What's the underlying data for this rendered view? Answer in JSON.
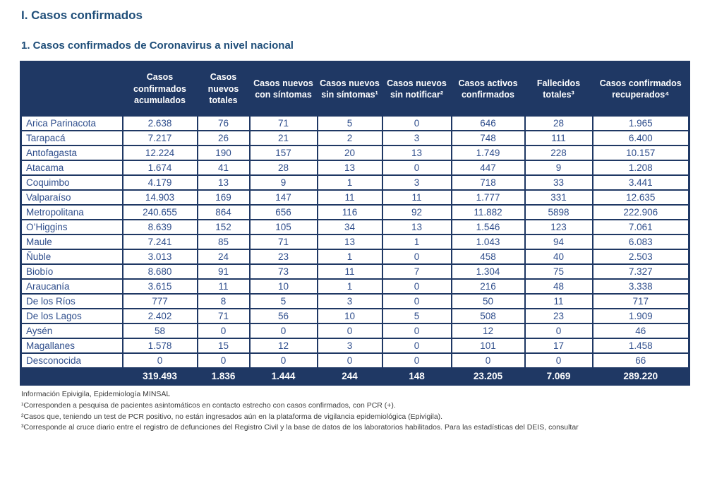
{
  "page": {
    "title": "I. Casos confirmados",
    "subtitle": "1. Casos confirmados de Coronavirus a nivel nacional"
  },
  "colors": {
    "header_background": "#1F3864",
    "table_border": "#1F3864",
    "data_text": "#2F4E8C",
    "title_text": "#1F4E79",
    "footnote_text": "#3D3D3D"
  },
  "table": {
    "columns": [
      "",
      "Casos confirmados acumulados",
      "Casos nuevos totales",
      "Casos nuevos con síntomas",
      "Casos nuevos sin síntomas¹",
      "Casos nuevos sin notificar²",
      "Casos activos confirmados",
      "Fallecidos totales³",
      "Casos confirmados recuperados⁴"
    ],
    "rows": [
      {
        "region": "Arica Parinacota",
        "values": [
          "2.638",
          "76",
          "71",
          "5",
          "0",
          "646",
          "28",
          "1.965"
        ]
      },
      {
        "region": "Tarapacá",
        "values": [
          "7.217",
          "26",
          "21",
          "2",
          "3",
          "748",
          "111",
          "6.400"
        ]
      },
      {
        "region": "Antofagasta",
        "values": [
          "12.224",
          "190",
          "157",
          "20",
          "13",
          "1.749",
          "228",
          "10.157"
        ]
      },
      {
        "region": "Atacama",
        "values": [
          "1.674",
          "41",
          "28",
          "13",
          "0",
          "447",
          "9",
          "1.208"
        ]
      },
      {
        "region": "Coquimbo",
        "values": [
          "4.179",
          "13",
          "9",
          "1",
          "3",
          "718",
          "33",
          "3.441"
        ]
      },
      {
        "region": "Valparaíso",
        "values": [
          "14.903",
          "169",
          "147",
          "11",
          "11",
          "1.777",
          "331",
          "12.635"
        ]
      },
      {
        "region": "Metropolitana",
        "values": [
          "240.655",
          "864",
          "656",
          "116",
          "92",
          "11.882",
          "5898",
          "222.906"
        ]
      },
      {
        "region": "O’Higgins",
        "values": [
          "8.639",
          "152",
          "105",
          "34",
          "13",
          "1.546",
          "123",
          "7.061"
        ]
      },
      {
        "region": "Maule",
        "values": [
          "7.241",
          "85",
          "71",
          "13",
          "1",
          "1.043",
          "94",
          "6.083"
        ]
      },
      {
        "region": "Ñuble",
        "values": [
          "3.013",
          "24",
          "23",
          "1",
          "0",
          "458",
          "40",
          "2.503"
        ]
      },
      {
        "region": "Biobío",
        "values": [
          "8.680",
          "91",
          "73",
          "11",
          "7",
          "1.304",
          "75",
          "7.327"
        ]
      },
      {
        "region": "Araucanía",
        "values": [
          "3.615",
          "11",
          "10",
          "1",
          "0",
          "216",
          "48",
          "3.338"
        ]
      },
      {
        "region": "De los Ríos",
        "values": [
          "777",
          "8",
          "5",
          "3",
          "0",
          "50",
          "11",
          "717"
        ]
      },
      {
        "region": "De los Lagos",
        "values": [
          "2.402",
          "71",
          "56",
          "10",
          "5",
          "508",
          "23",
          "1.909"
        ]
      },
      {
        "region": "Aysén",
        "values": [
          "58",
          "0",
          "0",
          "0",
          "0",
          "12",
          "0",
          "46"
        ]
      },
      {
        "region": "Magallanes",
        "values": [
          "1.578",
          "15",
          "12",
          "3",
          "0",
          "101",
          "17",
          "1.458"
        ]
      },
      {
        "region": "Desconocida",
        "values": [
          "0",
          "0",
          "0",
          "0",
          "0",
          "0",
          "0",
          "66"
        ]
      }
    ],
    "total": {
      "label": "",
      "values": [
        "319.493",
        "1.836",
        "1.444",
        "244",
        "148",
        "23.205",
        "7.069",
        "289.220"
      ]
    }
  },
  "footnotes": [
    "Información Epivigila, Epidemiología MINSAL",
    "¹Corresponden a pesquisa de pacientes asintomáticos en contacto estrecho con casos confirmados, con PCR (+).",
    "²Casos que, teniendo un test de PCR positivo, no están ingresados aún en la plataforma de vigilancia epidemiológica (Epivigila).",
    "³Corresponde al cruce diario entre el registro de defunciones del Registro Civil y la base de datos de los laboratorios habilitados. Para las estadísticas del DEIS, consultar"
  ]
}
